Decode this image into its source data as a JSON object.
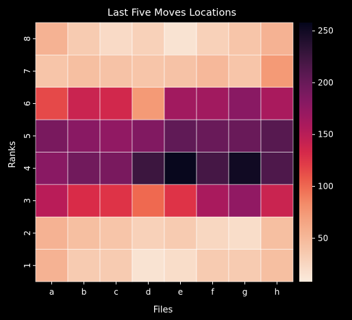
{
  "chart_data": {
    "type": "heatmap",
    "title": "Last Five Moves Locations",
    "xlabel": "Files",
    "ylabel": "Ranks",
    "x_categories": [
      "a",
      "b",
      "c",
      "d",
      "e",
      "f",
      "g",
      "h"
    ],
    "y_categories": [
      "8",
      "7",
      "6",
      "5",
      "4",
      "3",
      "2",
      "1"
    ],
    "values": [
      [
        55,
        35,
        22,
        30,
        15,
        30,
        40,
        55
      ],
      [
        40,
        45,
        42,
        40,
        42,
        50,
        40,
        75
      ],
      [
        115,
        140,
        135,
        75,
        165,
        165,
        180,
        160
      ],
      [
        190,
        180,
        175,
        185,
        205,
        200,
        200,
        210
      ],
      [
        180,
        195,
        190,
        225,
        255,
        220,
        250,
        215
      ],
      [
        150,
        130,
        125,
        100,
        125,
        160,
        175,
        140
      ],
      [
        55,
        45,
        40,
        30,
        35,
        25,
        20,
        45
      ],
      [
        55,
        35,
        35,
        15,
        20,
        35,
        35,
        45
      ]
    ],
    "colorbar": {
      "min": 8,
      "max": 258,
      "ticks": [
        50,
        100,
        150,
        200,
        250
      ],
      "colormap": "rocket_r"
    },
    "grid_line_color": "#ffffff",
    "background": "#000000"
  }
}
